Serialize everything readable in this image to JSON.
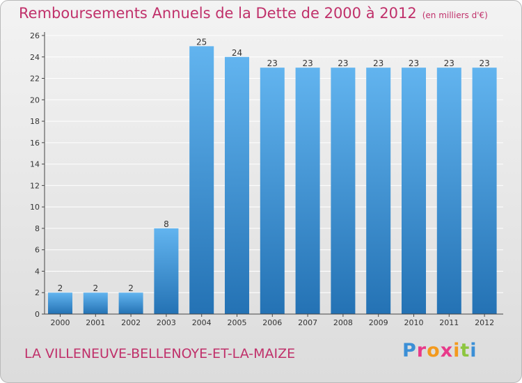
{
  "header": {
    "title": "Remboursements Annuels de la Dette de 2000 à 2012",
    "subtitle": "(en milliers d'€)"
  },
  "footer": {
    "city": "LA VILLENEUVE-BELLENOYE-ET-LA-MAIZE",
    "brand": "Proxiti",
    "brand_colors": [
      "#3b8fd6",
      "#e83a8a",
      "#f39a1e",
      "#e83a8a",
      "#f39a1e",
      "#8dc63f",
      "#3b8fd6"
    ]
  },
  "colors": {
    "bar_light": "#62b4ef",
    "bar_dark": "#2472b4",
    "grid": "#ffffff",
    "axis": "#444444"
  },
  "chart_data": {
    "type": "bar",
    "title": "Remboursements Annuels de la Dette de 2000 à 2012",
    "subtitle": "(en milliers d'€)",
    "categories": [
      "2000",
      "2001",
      "2002",
      "2003",
      "2004",
      "2005",
      "2006",
      "2007",
      "2008",
      "2009",
      "2010",
      "2011",
      "2012"
    ],
    "values": [
      2,
      2,
      2,
      8,
      25,
      24,
      23,
      23,
      23,
      23,
      23,
      23,
      23
    ],
    "yticks": [
      0,
      2,
      4,
      6,
      8,
      10,
      12,
      14,
      16,
      18,
      20,
      22,
      24,
      26
    ],
    "ylim": [
      0,
      26
    ],
    "xlabel": "",
    "ylabel": "",
    "grid": true,
    "legend": "none"
  }
}
